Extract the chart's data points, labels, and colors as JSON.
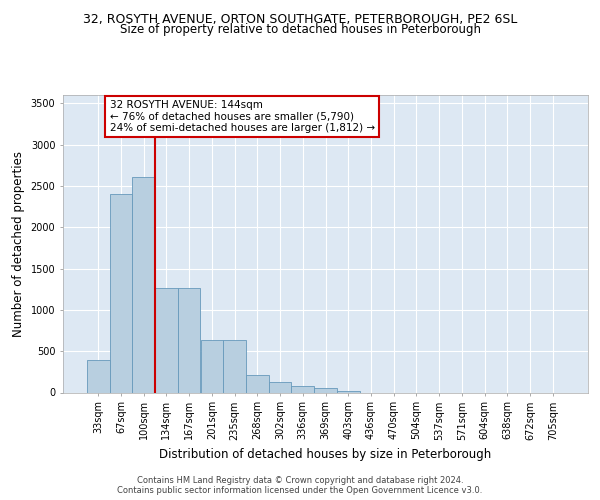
{
  "title_line1": "32, ROSYTH AVENUE, ORTON SOUTHGATE, PETERBOROUGH, PE2 6SL",
  "title_line2": "Size of property relative to detached houses in Peterborough",
  "xlabel": "Distribution of detached houses by size in Peterborough",
  "ylabel": "Number of detached properties",
  "categories": [
    "33sqm",
    "67sqm",
    "100sqm",
    "134sqm",
    "167sqm",
    "201sqm",
    "235sqm",
    "268sqm",
    "302sqm",
    "336sqm",
    "369sqm",
    "403sqm",
    "436sqm",
    "470sqm",
    "504sqm",
    "537sqm",
    "571sqm",
    "604sqm",
    "638sqm",
    "672sqm",
    "705sqm"
  ],
  "values": [
    390,
    2400,
    2610,
    1260,
    1260,
    630,
    630,
    210,
    130,
    80,
    50,
    20,
    0,
    0,
    0,
    0,
    0,
    0,
    0,
    0,
    0
  ],
  "bar_color": "#b8cfe0",
  "bar_edge_color": "#6699bb",
  "vline_x": 2.5,
  "vline_color": "#cc0000",
  "annotation_text": "32 ROSYTH AVENUE: 144sqm\n← 76% of detached houses are smaller (5,790)\n24% of semi-detached houses are larger (1,812) →",
  "annotation_box_color": "#cc0000",
  "annotation_bg": "#ffffff",
  "ylim": [
    0,
    3600
  ],
  "yticks": [
    0,
    500,
    1000,
    1500,
    2000,
    2500,
    3000,
    3500
  ],
  "background_color": "#dde8f3",
  "grid_color": "#ffffff",
  "footer": "Contains HM Land Registry data © Crown copyright and database right 2024.\nContains public sector information licensed under the Open Government Licence v3.0.",
  "title_fontsize": 9,
  "subtitle_fontsize": 8.5,
  "tick_fontsize": 7,
  "ylabel_fontsize": 8.5,
  "xlabel_fontsize": 8.5,
  "annotation_fontsize": 7.5
}
